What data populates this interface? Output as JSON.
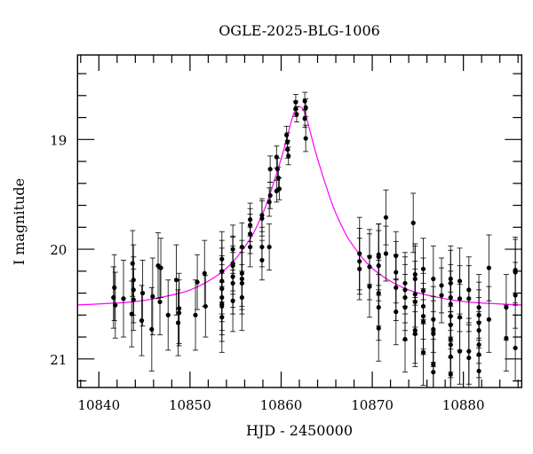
{
  "chart_data": {
    "type": "scatter",
    "title": "OGLE-2025-BLG-1006",
    "xlabel": "HJD - 2450000",
    "ylabel": "I magnitude",
    "xlim": [
      10837.66,
      10886.4
    ],
    "ylim": [
      18.23,
      21.26
    ],
    "y_inverted": true,
    "grid": false,
    "x_ticks": [
      10840,
      10850,
      10860,
      10870,
      10880
    ],
    "x_tick_labels": [
      "10840",
      "10850",
      "10860",
      "10870",
      "10880"
    ],
    "x_minor_step": 2,
    "y_ticks": [
      19,
      20,
      21
    ],
    "y_tick_labels": [
      "19",
      "20",
      "21"
    ],
    "y_minor_step": 0.2,
    "colors": {
      "data": "#000000",
      "model": "#ff00ff",
      "frame": "#000000"
    },
    "series": [
      {
        "kind": "points_with_errorbars",
        "columns": [
          "HJD - 2450000",
          "I",
          "err"
        ],
        "points": [
          [
            10841.7,
            20.35,
            0.3
          ],
          [
            10841.6,
            20.44,
            0.28
          ],
          [
            10841.8,
            20.51,
            0.3
          ],
          [
            10842.7,
            20.45,
            0.35
          ],
          [
            10843.7,
            20.13,
            0.3
          ],
          [
            10843.8,
            20.28,
            0.32
          ],
          [
            10843.8,
            20.37,
            0.3
          ],
          [
            10843.8,
            20.46,
            0.28
          ],
          [
            10843.6,
            20.59,
            0.3
          ],
          [
            10844.7,
            20.65,
            0.32
          ],
          [
            10844.8,
            20.4,
            0.3
          ],
          [
            10845.8,
            20.73,
            0.38
          ],
          [
            10845.9,
            20.43,
            0.35
          ],
          [
            10846.5,
            20.15,
            0.3
          ],
          [
            10846.8,
            20.17,
            0.27
          ],
          [
            10846.7,
            20.48,
            0.3
          ],
          [
            10847.6,
            20.6,
            0.32
          ],
          [
            10848.5,
            20.28,
            0.32
          ],
          [
            10848.8,
            20.54,
            0.32
          ],
          [
            10848.8,
            20.58,
            0.3
          ],
          [
            10848.7,
            20.67,
            0.3
          ],
          [
            10850.6,
            20.6,
            0.32
          ],
          [
            10850.8,
            20.3,
            0.25
          ],
          [
            10851.6,
            20.22,
            0.3
          ],
          [
            10851.7,
            20.52,
            0.28
          ],
          [
            10853.5,
            20.09,
            0.25
          ],
          [
            10853.5,
            20.2,
            0.28
          ],
          [
            10853.5,
            20.29,
            0.3
          ],
          [
            10853.5,
            20.36,
            0.3
          ],
          [
            10853.5,
            20.44,
            0.3
          ],
          [
            10853.5,
            20.5,
            0.28
          ],
          [
            10853.5,
            20.52,
            0.32
          ],
          [
            10853.5,
            20.62,
            0.32
          ],
          [
            10854.7,
            20.0,
            0.22
          ],
          [
            10854.7,
            20.13,
            0.25
          ],
          [
            10854.7,
            20.15,
            0.26
          ],
          [
            10854.7,
            20.25,
            0.28
          ],
          [
            10854.7,
            20.31,
            0.28
          ],
          [
            10854.7,
            20.47,
            0.28
          ],
          [
            10855.7,
            19.98,
            0.22
          ],
          [
            10855.7,
            20.22,
            0.3
          ],
          [
            10855.7,
            20.27,
            0.28
          ],
          [
            10855.7,
            20.31,
            0.28
          ],
          [
            10855.7,
            20.44,
            0.3
          ],
          [
            10856.6,
            19.73,
            0.15
          ],
          [
            10856.6,
            19.78,
            0.15
          ],
          [
            10856.6,
            19.86,
            0.18
          ],
          [
            10856.6,
            19.98,
            0.18
          ],
          [
            10857.9,
            19.69,
            0.15
          ],
          [
            10857.9,
            19.72,
            0.16
          ],
          [
            10857.9,
            19.98,
            0.18
          ],
          [
            10857.9,
            20.1,
            0.18
          ],
          [
            10858.7,
            19.98,
            0.21
          ],
          [
            10858.8,
            19.51,
            0.12
          ],
          [
            10858.8,
            19.27,
            0.12
          ],
          [
            10858.7,
            19.57,
            0.13
          ],
          [
            10859.5,
            19.16,
            0.1
          ],
          [
            10859.6,
            19.27,
            0.1
          ],
          [
            10859.7,
            19.35,
            0.1
          ],
          [
            10859.8,
            19.45,
            0.1
          ],
          [
            10859.5,
            19.47,
            0.1
          ],
          [
            10860.6,
            18.96,
            0.08
          ],
          [
            10860.7,
            19.02,
            0.08
          ],
          [
            10860.8,
            19.15,
            0.08
          ],
          [
            10860.7,
            19.09,
            0.08
          ],
          [
            10861.6,
            18.66,
            0.07
          ],
          [
            10861.6,
            18.72,
            0.07
          ],
          [
            10861.7,
            18.77,
            0.07
          ],
          [
            10862.6,
            18.65,
            0.08
          ],
          [
            10862.7,
            18.71,
            0.08
          ],
          [
            10862.6,
            18.81,
            0.08
          ],
          [
            10862.7,
            18.99,
            0.12
          ],
          [
            10868.6,
            20.04,
            0.33
          ],
          [
            10868.6,
            20.11,
            0.3
          ],
          [
            10868.6,
            20.18,
            0.28
          ],
          [
            10869.7,
            20.07,
            0.25
          ],
          [
            10869.7,
            20.16,
            0.3
          ],
          [
            10869.7,
            20.34,
            0.28
          ],
          [
            10870.7,
            20.05,
            0.28
          ],
          [
            10870.7,
            20.07,
            0.3
          ],
          [
            10870.7,
            20.15,
            0.32
          ],
          [
            10870.7,
            20.4,
            0.3
          ],
          [
            10870.7,
            20.53,
            0.3
          ],
          [
            10870.7,
            20.72,
            0.3
          ],
          [
            10871.5,
            19.71,
            0.25
          ],
          [
            10871.5,
            20.04,
            0.25
          ],
          [
            10872.6,
            20.06,
            0.22
          ],
          [
            10872.6,
            20.21,
            0.28
          ],
          [
            10872.6,
            20.35,
            0.3
          ],
          [
            10872.6,
            20.57,
            0.3
          ],
          [
            10873.6,
            20.31,
            0.28
          ],
          [
            10873.6,
            20.37,
            0.3
          ],
          [
            10873.6,
            20.44,
            0.3
          ],
          [
            10873.6,
            20.53,
            0.3
          ],
          [
            10873.6,
            20.82,
            0.3
          ],
          [
            10874.5,
            19.76,
            0.27
          ],
          [
            10874.7,
            20.23,
            0.28
          ],
          [
            10874.7,
            20.27,
            0.3
          ],
          [
            10874.7,
            20.41,
            0.3
          ],
          [
            10874.7,
            20.48,
            0.3
          ],
          [
            10874.7,
            20.74,
            0.3
          ],
          [
            10874.7,
            20.77,
            0.3
          ],
          [
            10875.6,
            20.18,
            0.28
          ],
          [
            10875.6,
            20.38,
            0.3
          ],
          [
            10875.6,
            20.52,
            0.3
          ],
          [
            10875.6,
            20.61,
            0.3
          ],
          [
            10875.6,
            20.66,
            0.3
          ],
          [
            10875.6,
            20.94,
            0.3
          ],
          [
            10876.7,
            20.27,
            0.3
          ],
          [
            10876.7,
            20.64,
            0.3
          ],
          [
            10876.7,
            20.73,
            0.3
          ],
          [
            10876.7,
            20.77,
            0.3
          ],
          [
            10876.7,
            21.05,
            0.3
          ],
          [
            10876.7,
            21.12,
            0.3
          ],
          [
            10877.6,
            20.33,
            0.25
          ],
          [
            10877.6,
            20.42,
            0.25
          ],
          [
            10878.6,
            20.27,
            0.3
          ],
          [
            10878.6,
            20.31,
            0.3
          ],
          [
            10878.6,
            20.44,
            0.3
          ],
          [
            10878.6,
            20.5,
            0.3
          ],
          [
            10878.6,
            20.61,
            0.3
          ],
          [
            10878.6,
            20.69,
            0.3
          ],
          [
            10878.6,
            20.82,
            0.3
          ],
          [
            10878.6,
            20.87,
            0.3
          ],
          [
            10878.6,
            20.98,
            0.3
          ],
          [
            10878.6,
            21.14,
            0.3
          ],
          [
            10879.6,
            20.29,
            0.3
          ],
          [
            10879.6,
            20.45,
            0.3
          ],
          [
            10879.6,
            20.62,
            0.3
          ],
          [
            10879.6,
            20.93,
            0.3
          ],
          [
            10880.6,
            20.37,
            0.3
          ],
          [
            10880.6,
            20.45,
            0.3
          ],
          [
            10880.6,
            20.93,
            0.3
          ],
          [
            10880.6,
            20.99,
            0.3
          ],
          [
            10881.7,
            20.53,
            0.3
          ],
          [
            10881.7,
            20.6,
            0.3
          ],
          [
            10881.7,
            20.67,
            0.3
          ],
          [
            10881.7,
            20.74,
            0.3
          ],
          [
            10881.7,
            20.87,
            0.3
          ],
          [
            10881.7,
            20.96,
            0.3
          ],
          [
            10881.7,
            21.11,
            0.3
          ],
          [
            10882.8,
            20.17,
            0.3
          ],
          [
            10882.8,
            20.64,
            0.3
          ],
          [
            10884.7,
            20.53,
            0.3
          ],
          [
            10884.7,
            20.81,
            0.3
          ],
          [
            10885.7,
            20.19,
            0.3
          ],
          [
            10885.7,
            20.21,
            0.3
          ],
          [
            10885.7,
            20.42,
            0.3
          ],
          [
            10885.7,
            20.9,
            0.3
          ]
        ]
      },
      {
        "kind": "model_curve",
        "x": [
          10837.2,
          10843.6,
          10847.3,
          10850.05,
          10852.8,
          10854.65,
          10856.5,
          10857.4,
          10858.3,
          10859.2,
          10860.2,
          10861.1,
          10861.5,
          10862.0,
          10862.5,
          10862.9,
          10863.8,
          10864.8,
          10865.7,
          10866.6,
          10867.5,
          10869.35,
          10871.2,
          10873.95,
          10876.7,
          10880.4,
          10886.8
        ],
        "y": [
          20.51,
          20.48,
          20.43,
          20.37,
          20.25,
          20.12,
          19.92,
          19.78,
          19.61,
          19.39,
          19.12,
          18.84,
          18.74,
          18.7,
          18.74,
          18.84,
          19.12,
          19.39,
          19.61,
          19.78,
          19.92,
          20.12,
          20.25,
          20.37,
          20.43,
          20.48,
          20.51
        ]
      }
    ]
  }
}
